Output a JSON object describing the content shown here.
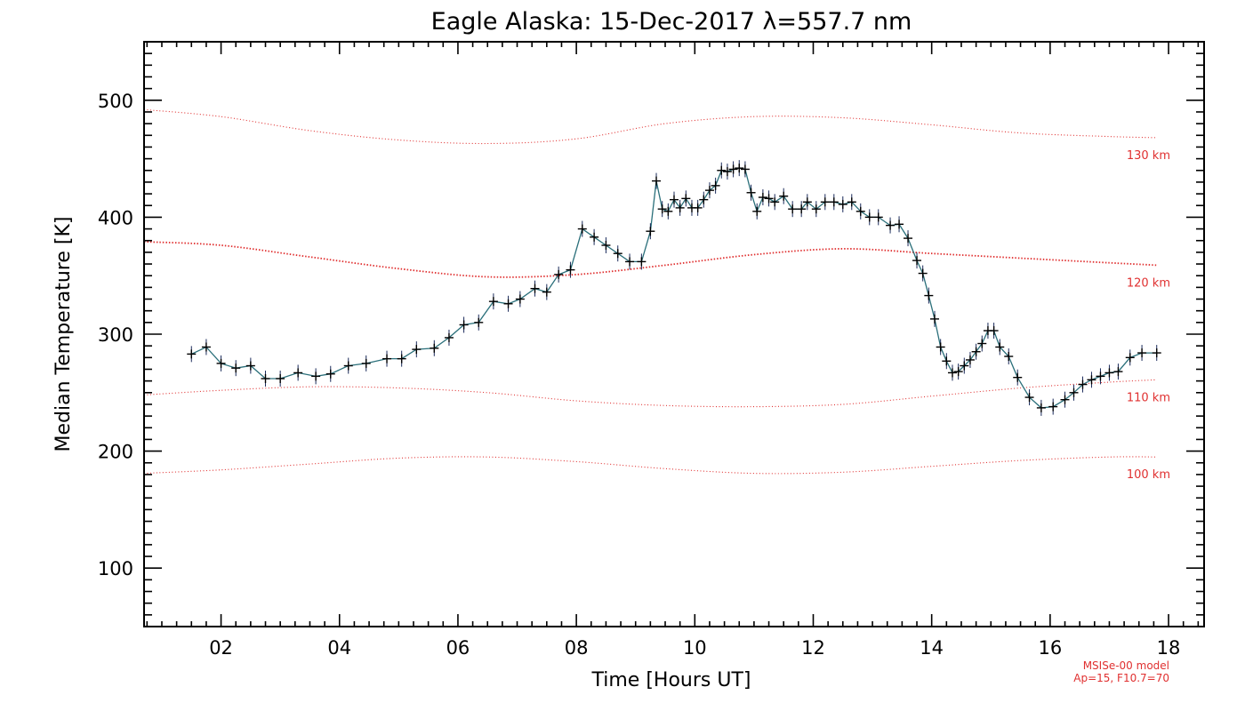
{
  "chart_data": {
    "type": "line",
    "title": "Eagle Alaska: 15-Dec-2017 λ=557.7 nm",
    "xlabel": "Time [Hours UT]",
    "ylabel": "Median Temperature [K]",
    "xlim": [
      0.7,
      18.6
    ],
    "ylim": [
      50,
      550
    ],
    "x_ticks": [
      2,
      4,
      6,
      8,
      10,
      12,
      14,
      16,
      18
    ],
    "x_tick_labels": [
      "02",
      "04",
      "06",
      "08",
      "10",
      "12",
      "14",
      "16",
      "18"
    ],
    "y_ticks": [
      100,
      200,
      300,
      400,
      500
    ],
    "y_tick_labels": [
      "100",
      "200",
      "300",
      "400",
      "500"
    ],
    "grid": false,
    "series": [
      {
        "style": "line with plus markers and error bars",
        "color": "#0b2a4a",
        "x": [
          1.5,
          1.75,
          2.0,
          2.25,
          2.5,
          2.75,
          3.0,
          3.3,
          3.6,
          3.85,
          4.15,
          4.45,
          4.8,
          5.05,
          5.3,
          5.6,
          5.85,
          6.1,
          6.35,
          6.6,
          6.85,
          7.05,
          7.3,
          7.5,
          7.7,
          7.9,
          8.1,
          8.3,
          8.5,
          8.7,
          8.9,
          9.1,
          9.25,
          9.35,
          9.45,
          9.55,
          9.65,
          9.75,
          9.85,
          9.95,
          10.05,
          10.15,
          10.25,
          10.35,
          10.45,
          10.55,
          10.65,
          10.75,
          10.85,
          10.95,
          11.05,
          11.15,
          11.25,
          11.35,
          11.5,
          11.65,
          11.8,
          11.9,
          12.05,
          12.2,
          12.35,
          12.5,
          12.65,
          12.8,
          12.95,
          13.1,
          13.3,
          13.45,
          13.6,
          13.75,
          13.85,
          13.95,
          14.05,
          14.15,
          14.25,
          14.35,
          14.45,
          14.55,
          14.65,
          14.75,
          14.85,
          14.95,
          15.05,
          15.15,
          15.3,
          15.45,
          15.65,
          15.85,
          16.05,
          16.25,
          16.4,
          16.55,
          16.7,
          16.85,
          17.0,
          17.15,
          17.35,
          17.55,
          17.8
        ],
        "y": [
          283,
          289,
          275,
          271,
          273,
          262,
          262,
          267,
          264,
          266,
          273,
          275,
          279,
          279,
          287,
          288,
          297,
          308,
          310,
          328,
          326,
          330,
          339,
          336,
          351,
          355,
          390,
          383,
          376,
          369,
          362,
          362,
          388,
          431,
          407,
          405,
          415,
          408,
          416,
          408,
          408,
          415,
          423,
          427,
          440,
          439,
          441,
          442,
          441,
          421,
          405,
          417,
          416,
          413,
          418,
          407,
          407,
          413,
          407,
          413,
          413,
          411,
          413,
          405,
          400,
          400,
          393,
          394,
          382,
          363,
          352,
          333,
          313,
          289,
          277,
          267,
          268,
          273,
          278,
          285,
          292,
          303,
          303,
          289,
          281,
          263,
          246,
          237,
          238,
          244,
          250,
          257,
          261,
          264,
          267,
          268,
          280,
          284,
          284
        ]
      }
    ],
    "model_curves": [
      {
        "name": "130 km",
        "color": "#e03030",
        "x": [
          0.7,
          2.0,
          3.5,
          5.0,
          6.5,
          8.0,
          9.5,
          11.0,
          12.5,
          14.0,
          15.5,
          17.0,
          17.8
        ],
        "y": [
          492,
          486,
          474,
          466,
          463,
          467,
          480,
          486,
          485,
          479,
          472,
          469,
          468
        ]
      },
      {
        "name": "120 km",
        "color": "#e03030",
        "x": [
          0.7,
          2.0,
          3.5,
          5.0,
          6.5,
          8.0,
          9.5,
          11.0,
          12.5,
          14.0,
          15.5,
          17.0,
          17.8
        ],
        "y": [
          379,
          376,
          366,
          356,
          349,
          351,
          359,
          368,
          373,
          369,
          365,
          361,
          359
        ]
      },
      {
        "name": "110 km",
        "color": "#e03030",
        "x": [
          0.7,
          2.0,
          3.5,
          5.0,
          6.5,
          8.0,
          9.5,
          11.0,
          12.5,
          14.0,
          15.5,
          17.0,
          17.8
        ],
        "y": [
          248,
          252,
          255,
          254,
          250,
          243,
          239,
          238,
          240,
          247,
          254,
          259,
          261
        ]
      },
      {
        "name": "100 km",
        "color": "#e03030",
        "x": [
          0.7,
          2.0,
          3.5,
          5.0,
          6.5,
          8.0,
          9.5,
          11.0,
          12.5,
          14.0,
          15.5,
          17.0,
          17.8
        ],
        "y": [
          181,
          184,
          189,
          194,
          195,
          191,
          185,
          181,
          182,
          187,
          192,
          195,
          195
        ]
      }
    ],
    "model_labels": [
      "130 km",
      "120 km",
      "110 km",
      "100 km"
    ],
    "annotations": [
      "MSISe-00 model",
      "Ap=15, F10.7=70"
    ]
  }
}
